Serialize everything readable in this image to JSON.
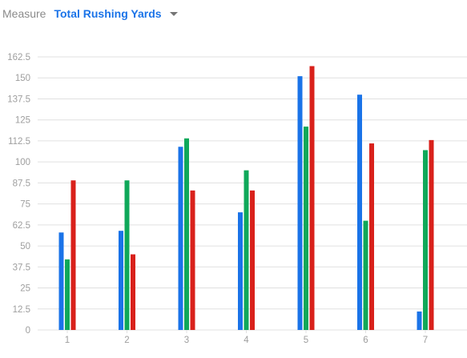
{
  "header": {
    "measure_label": "Measure",
    "selected_measure": "Total Rushing Yards",
    "dropdown_icon": "caret-down-icon"
  },
  "colors": {
    "series_1": "#1a73e8",
    "series_2": "#0fa85a",
    "series_3": "#d9211b",
    "grid": "#e0e0e0",
    "tick_text": "#9e9e9e"
  },
  "chart_data": {
    "type": "bar",
    "title": "",
    "xlabel": "",
    "ylabel": "",
    "categories": [
      "1",
      "2",
      "3",
      "4",
      "5",
      "6",
      "7"
    ],
    "series": [
      {
        "values": [
          58,
          59,
          109,
          70,
          151,
          140,
          11
        ]
      },
      {
        "values": [
          42,
          89,
          114,
          95,
          121,
          65,
          107
        ]
      },
      {
        "values": [
          89,
          45,
          83,
          83,
          157,
          111,
          113
        ]
      }
    ],
    "ylim": [
      0,
      162.5
    ],
    "yticks": [
      "0",
      "12.5",
      "25",
      "37.5",
      "50",
      "62.5",
      "75",
      "87.5",
      "100",
      "112.5",
      "125",
      "137.5",
      "150",
      "162.5"
    ],
    "grid": true,
    "legend": "none"
  }
}
